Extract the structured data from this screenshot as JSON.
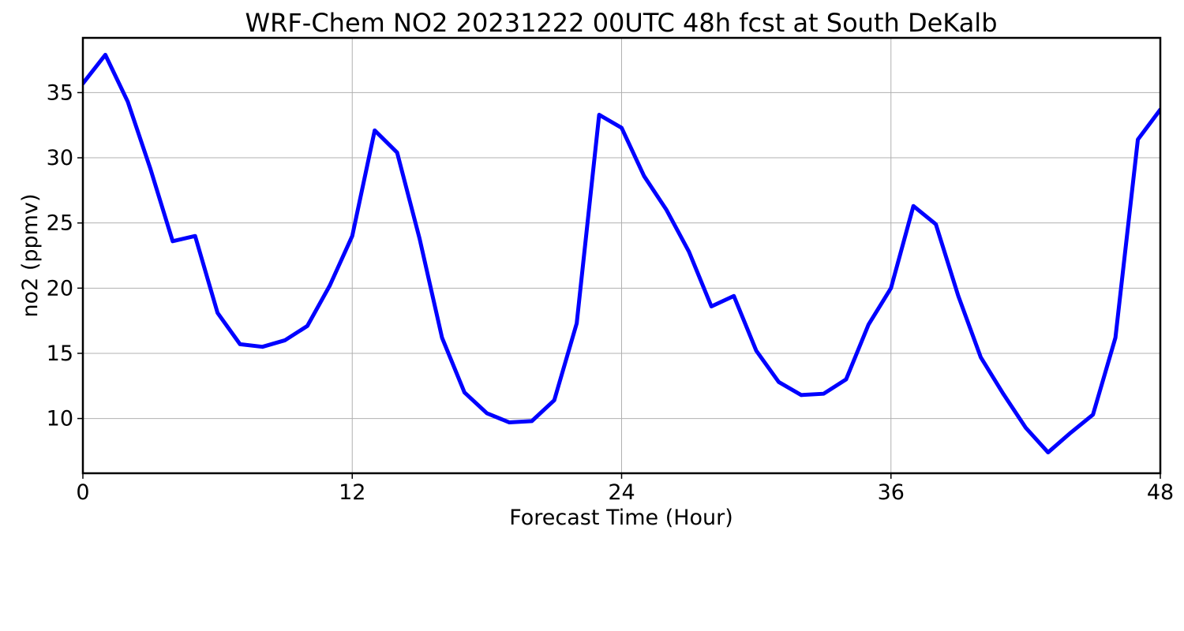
{
  "chart_data": {
    "type": "line",
    "title": "WRF-Chem NO2  20231222 00UTC 48h fcst at South DeKalb",
    "xlabel": "Forecast Time (Hour)",
    "ylabel": "no2  (ppmv)",
    "xlim": [
      0,
      48
    ],
    "ylim": [
      5.8,
      39.2
    ],
    "xticks": [
      0,
      12,
      24,
      36,
      48
    ],
    "yticks": [
      10,
      15,
      20,
      25,
      30,
      35
    ],
    "grid": true,
    "series": [
      {
        "color": "#0000ff",
        "x": [
          0,
          1,
          2,
          3,
          4,
          5,
          6,
          7,
          8,
          9,
          10,
          11,
          12,
          13,
          14,
          15,
          16,
          17,
          18,
          19,
          20,
          21,
          22,
          23,
          24,
          25,
          26,
          27,
          28,
          29,
          30,
          31,
          32,
          33,
          34,
          35,
          36,
          37,
          38,
          39,
          40,
          41,
          42,
          43,
          44,
          45,
          46,
          47,
          48
        ],
        "values": [
          35.7,
          37.9,
          34.3,
          29.2,
          23.6,
          24.0,
          18.1,
          15.7,
          15.5,
          16.0,
          17.1,
          20.2,
          24.0,
          32.1,
          30.4,
          23.8,
          16.2,
          12.0,
          10.4,
          9.7,
          9.8,
          11.4,
          17.3,
          33.3,
          32.3,
          28.6,
          26.0,
          22.8,
          18.6,
          19.4,
          15.2,
          12.8,
          11.8,
          11.9,
          13.0,
          17.2,
          20.0,
          26.3,
          24.9,
          19.4,
          14.7,
          11.9,
          9.3,
          7.4,
          8.9,
          10.3,
          16.2,
          31.4,
          33.7
        ]
      }
    ]
  }
}
